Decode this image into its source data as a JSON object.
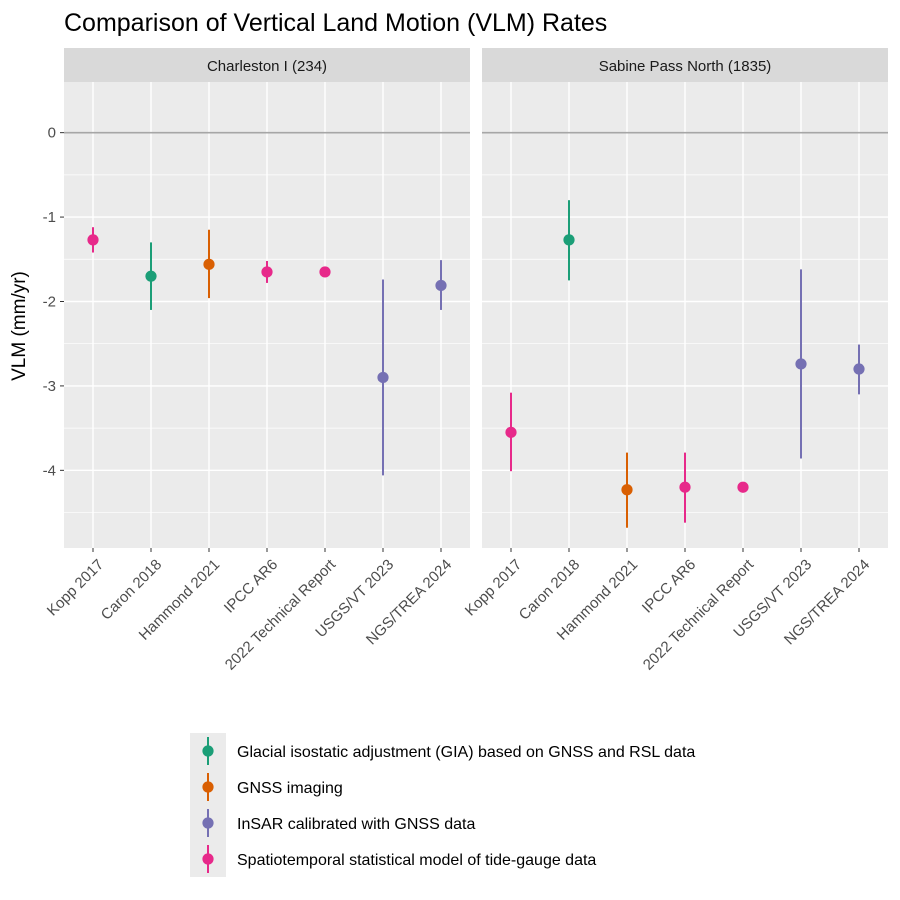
{
  "chart_data": {
    "type": "scatter",
    "title": "Comparison of Vertical Land Motion (VLM) Rates",
    "xlabel": "",
    "ylabel": "VLM (mm/yr)",
    "ylim": [
      -4.92,
      0.6
    ],
    "yticks": [
      0,
      -1,
      -2,
      -3,
      -4
    ],
    "ytick_labels": [
      "0",
      "-1",
      "-2",
      "-3",
      "-4"
    ],
    "reference_line": 0,
    "grid": true,
    "legend_position": "bottom",
    "categories": [
      "Kopp 2017",
      "Caron 2018",
      "Hammond 2021",
      "IPCC AR6",
      "2022 Technical Report",
      "USGS/VT 2023",
      "NGS/TREA 2024"
    ],
    "methods": [
      {
        "name": "Glacial isostatic adjustment (GIA) based on GNSS and RSL data",
        "color": "#1b9e77"
      },
      {
        "name": "GNSS imaging",
        "color": "#d95f02"
      },
      {
        "name": "InSAR calibrated with GNSS data",
        "color": "#7570b3"
      },
      {
        "name": "Spatiotemporal statistical model of tide-gauge data",
        "color": "#e7298a"
      }
    ],
    "panels": [
      {
        "name": "Charleston I (234)",
        "points": [
          {
            "category": "Kopp 2017",
            "value": -1.27,
            "low": -1.42,
            "high": -1.12,
            "method": 3
          },
          {
            "category": "Caron 2018",
            "value": -1.7,
            "low": -2.1,
            "high": -1.3,
            "method": 0
          },
          {
            "category": "Hammond 2021",
            "value": -1.56,
            "low": -1.96,
            "high": -1.15,
            "method": 1
          },
          {
            "category": "IPCC AR6",
            "value": -1.65,
            "low": -1.78,
            "high": -1.52,
            "method": 3
          },
          {
            "category": "2022 Technical Report",
            "value": -1.65,
            "low": -1.65,
            "high": -1.65,
            "method": 3
          },
          {
            "category": "USGS/VT 2023",
            "value": -2.9,
            "low": -4.06,
            "high": -1.74,
            "method": 2
          },
          {
            "category": "NGS/TREA 2024",
            "value": -1.81,
            "low": -2.1,
            "high": -1.51,
            "method": 2
          }
        ]
      },
      {
        "name": "Sabine Pass North (1835)",
        "points": [
          {
            "category": "Kopp 2017",
            "value": -3.55,
            "low": -4.01,
            "high": -3.08,
            "method": 3
          },
          {
            "category": "Caron 2018",
            "value": -1.27,
            "low": -1.75,
            "high": -0.8,
            "method": 0
          },
          {
            "category": "Hammond 2021",
            "value": -4.23,
            "low": -4.68,
            "high": -3.79,
            "method": 1
          },
          {
            "category": "IPCC AR6",
            "value": -4.2,
            "low": -4.62,
            "high": -3.79,
            "method": 3
          },
          {
            "category": "2022 Technical Report",
            "value": -4.2,
            "low": -4.2,
            "high": -4.2,
            "method": 3
          },
          {
            "category": "USGS/VT 2023",
            "value": -2.74,
            "low": -3.86,
            "high": -1.62,
            "method": 2
          },
          {
            "category": "NGS/TREA 2024",
            "value": -2.8,
            "low": -3.1,
            "high": -2.51,
            "method": 2
          }
        ]
      }
    ]
  }
}
